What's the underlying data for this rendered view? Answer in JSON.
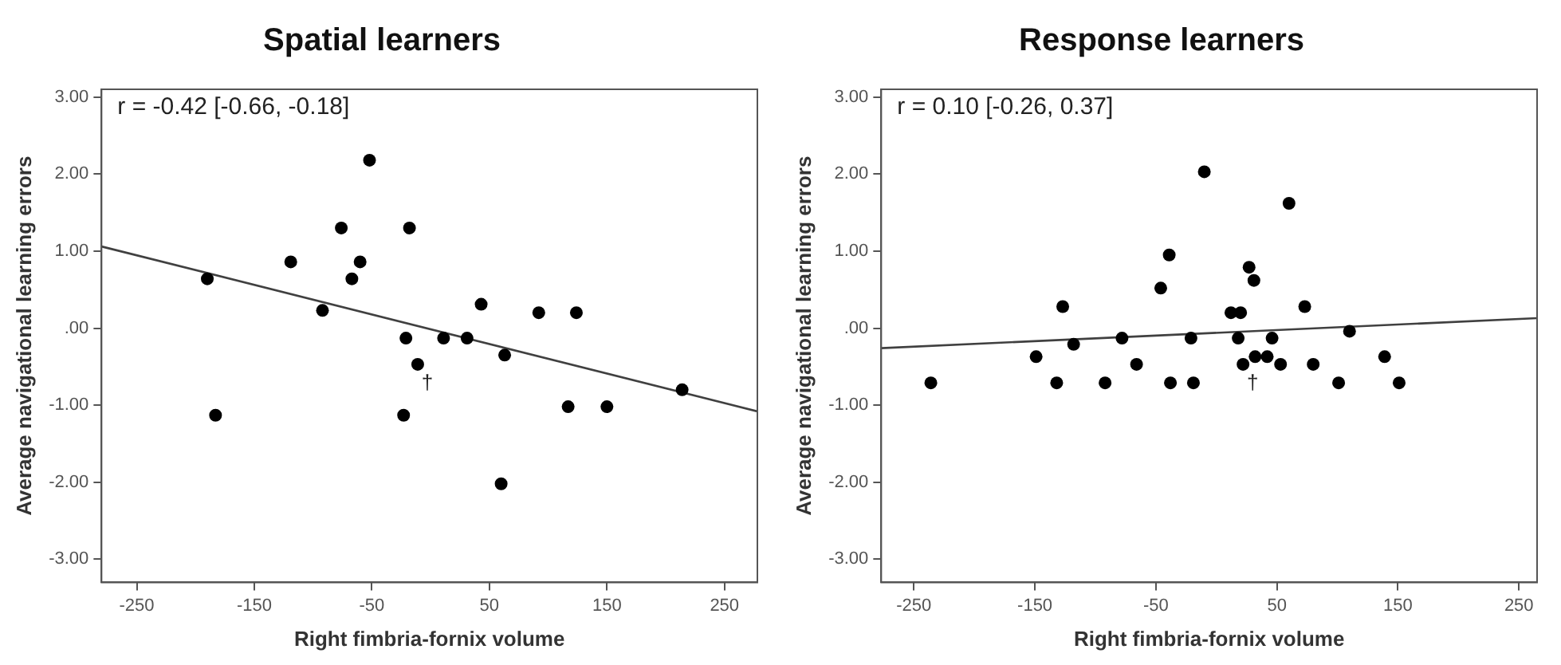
{
  "chart_data": [
    {
      "type": "scatter",
      "title": "Spatial learners",
      "xlabel": "Right fimbria-fornix volume",
      "ylabel": "Average navigational learning errors",
      "xlim": [
        -280,
        278
      ],
      "xticks": [
        -250,
        -150,
        -50,
        50,
        150,
        250
      ],
      "ylim": [
        -3.3,
        3.1
      ],
      "yticks": [
        {
          "value": 3,
          "label": "3.00"
        },
        {
          "value": 2,
          "label": "2.00"
        },
        {
          "value": 1,
          "label": "1.00"
        },
        {
          "value": 0,
          "label": ".00"
        },
        {
          "value": -1,
          "label": "-1.00"
        },
        {
          "value": -2,
          "label": "-2.00"
        },
        {
          "value": -3,
          "label": "-3.00"
        }
      ],
      "grid": false,
      "legend": false,
      "marker": "circle",
      "series": [
        {
          "color": "#000000",
          "x": [
            -190,
            -183,
            -119,
            -92,
            -76,
            -67,
            -60,
            -52,
            -18,
            -21,
            -23,
            -11,
            11,
            31,
            43,
            63,
            60,
            92,
            124,
            117,
            150,
            214
          ],
          "values": [
            0.64,
            -1.13,
            0.86,
            0.23,
            1.3,
            0.64,
            0.86,
            2.18,
            1.3,
            -0.13,
            -1.13,
            -0.47,
            -0.13,
            -0.13,
            0.31,
            -0.35,
            -2.02,
            0.2,
            0.2,
            -1.02,
            -1.02,
            -0.8
          ]
        },
        {
          "type": "line",
          "color": "#404040",
          "marker": "none",
          "x": [
            -280,
            278
          ],
          "values": [
            1.06,
            -1.08
          ]
        }
      ],
      "annotations": [
        "r = -0.42 [-0.66, -0.18]",
        {
          "text": "†",
          "x": -11,
          "y": -0.47
        }
      ]
    },
    {
      "type": "scatter",
      "title": "Response learners",
      "xlabel": "Right fimbria-fornix volume",
      "ylabel": "Average navigational learning errors",
      "xlim": [
        -277,
        265
      ],
      "xticks": [
        -250,
        -150,
        -50,
        50,
        150,
        250
      ],
      "ylim": [
        -3.3,
        3.1
      ],
      "yticks": [
        {
          "value": 3,
          "label": "3.00"
        },
        {
          "value": 2,
          "label": "2.00"
        },
        {
          "value": 1,
          "label": "1.00"
        },
        {
          "value": 0,
          "label": ".00"
        },
        {
          "value": -1,
          "label": "-1.00"
        },
        {
          "value": -2,
          "label": "-2.00"
        },
        {
          "value": -3,
          "label": "-3.00"
        }
      ],
      "grid": false,
      "legend": false,
      "marker": "circle",
      "series": [
        {
          "color": "#000000",
          "x": [
            -236,
            -149,
            -127,
            -132,
            -118,
            -92,
            -78,
            -66,
            -46,
            -39,
            -38,
            -21,
            -19,
            -10,
            12,
            20,
            18,
            22,
            27,
            31,
            32,
            42,
            46,
            53,
            60,
            73,
            80,
            101,
            110,
            139,
            151
          ],
          "values": [
            -0.71,
            -0.37,
            0.28,
            -0.71,
            -0.21,
            -0.71,
            -0.13,
            -0.47,
            0.52,
            0.95,
            -0.71,
            -0.13,
            -0.71,
            2.03,
            0.2,
            0.2,
            -0.13,
            -0.47,
            0.79,
            0.62,
            -0.37,
            -0.37,
            -0.13,
            -0.47,
            1.62,
            0.28,
            -0.47,
            -0.71,
            -0.04,
            -0.37,
            -0.71
          ]
        },
        {
          "type": "line",
          "color": "#404040",
          "marker": "none",
          "x": [
            -277,
            265
          ],
          "values": [
            -0.26,
            0.13
          ]
        }
      ],
      "annotations": [
        "r = 0.10 [-0.26, 0.37]",
        {
          "text": "†",
          "x": 22,
          "y": -0.47
        }
      ]
    }
  ]
}
